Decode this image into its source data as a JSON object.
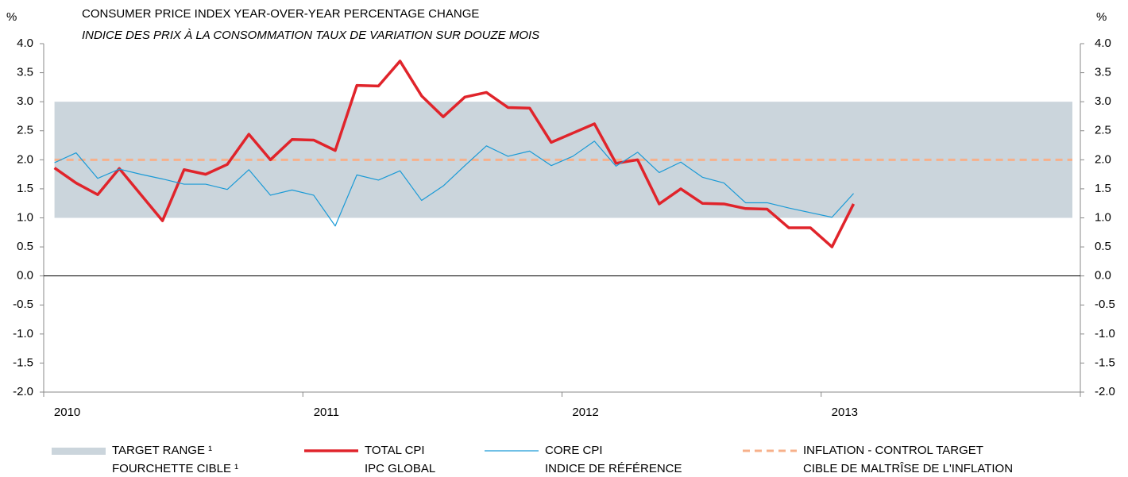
{
  "chart_data": {
    "type": "line",
    "title": "CONSUMER PRICE INDEX YEAR-OVER-YEAR PERCENTAGE CHANGE",
    "subtitle": "INDICE DES PRIX À LA CONSOMMATION TAUX DE VARIATION SUR DOUZE MOIS",
    "ylabel": "%",
    "y2label": "%",
    "categories": [
      "2010",
      null,
      null,
      null,
      null,
      null,
      null,
      null,
      null,
      null,
      null,
      null,
      "2011",
      null,
      null,
      null,
      null,
      null,
      null,
      null,
      null,
      null,
      null,
      null,
      "2012",
      null,
      null,
      null,
      null,
      null,
      null,
      null,
      null,
      null,
      null,
      null,
      "2013",
      null,
      null,
      null,
      null,
      null,
      null,
      null,
      null,
      null,
      null,
      null
    ],
    "ylim": [
      -2,
      4
    ],
    "y2lim": [
      -2,
      4
    ],
    "yticks": [
      {
        "value": -2,
        "label": "-2.0"
      },
      -1.5,
      {
        "value": -1,
        "label": "-1.0"
      },
      -0.5,
      {
        "value": 0,
        "label": "0.0"
      },
      0.5,
      {
        "value": 1,
        "label": "1.0"
      },
      1.5,
      {
        "value": 2,
        "label": "2.0"
      },
      2.5,
      {
        "value": 3,
        "label": "3.0"
      },
      3.5,
      {
        "value": 4,
        "label": "4.0"
      }
    ],
    "y2ticks": [
      {
        "value": -2,
        "label": "-2.0"
      },
      -1.5,
      {
        "value": -1,
        "label": "-1.0"
      },
      -0.5,
      {
        "value": 0,
        "label": "0.0"
      },
      0.5,
      {
        "value": 1,
        "label": "1.0"
      },
      1.5,
      {
        "value": 2,
        "label": "2.0"
      },
      2.5,
      {
        "value": 3,
        "label": "3.0"
      },
      3.5,
      {
        "value": 4,
        "label": "4.0"
      }
    ],
    "band": {
      "name": "TARGET RANGE ¹",
      "name_fr": "FOURCHETTE CIBLE ¹",
      "from": 1,
      "to": 3,
      "color": "#cbd5dc"
    },
    "target": {
      "name": "INFLATION - CONTROL TARGET",
      "name_fr": "CIBLE DE MALTRÎSE DE L'INFLATION",
      "value": 2,
      "color": "#f7b08a"
    },
    "series": [
      {
        "name": "TOTAL CPI",
        "name_fr": "IPC GLOBAL",
        "color": "#e0242b",
        "width": 3.5,
        "values": [
          1.86,
          1.6,
          1.4,
          1.85,
          1.4,
          0.95,
          1.83,
          1.75,
          1.92,
          2.44,
          2.0,
          2.35,
          2.34,
          2.16,
          3.28,
          3.27,
          3.7,
          3.1,
          2.74,
          3.08,
          3.16,
          2.9,
          2.89,
          2.3,
          2.46,
          2.62,
          1.94,
          2.0,
          1.24,
          1.5,
          1.25,
          1.24,
          1.16,
          1.15,
          0.83,
          0.83,
          0.5,
          1.24,
          null,
          null,
          null,
          null,
          null,
          null,
          null,
          null,
          null,
          null
        ]
      },
      {
        "name": "CORE CPI",
        "name_fr": "INDICE DE RÉFÉRENCE",
        "color": "#1a9ad6",
        "width": 1.2,
        "values": [
          1.95,
          2.12,
          1.68,
          1.84,
          1.75,
          1.67,
          1.58,
          1.58,
          1.49,
          1.83,
          1.39,
          1.48,
          1.39,
          0.86,
          1.74,
          1.65,
          1.81,
          1.3,
          1.55,
          1.9,
          2.24,
          2.06,
          2.15,
          1.9,
          2.06,
          2.32,
          1.89,
          2.13,
          1.78,
          1.96,
          1.7,
          1.6,
          1.26,
          1.26,
          1.17,
          1.09,
          1.01,
          1.42,
          null,
          null,
          null,
          null,
          null,
          null,
          null,
          null,
          null,
          null
        ]
      }
    ]
  }
}
